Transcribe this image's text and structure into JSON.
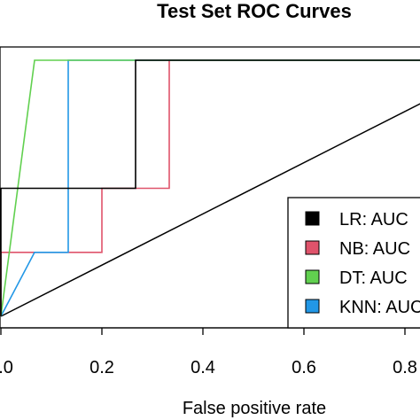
{
  "chart_data": {
    "type": "line",
    "title": "Test Set ROC Curves",
    "xlabel": "False positive rate",
    "ylabel": "",
    "xlim": [
      0,
      0.84
    ],
    "ylim": [
      0,
      1.04
    ],
    "x_ticks": [
      0.0,
      0.2,
      0.4,
      0.6,
      0.8
    ],
    "x_tick_labels": [
      "0.0",
      "0.2",
      "0.4",
      "0.6",
      "0.8"
    ],
    "grid": false,
    "legend_position": "bottom-right",
    "diagonal_reference": true,
    "series": [
      {
        "name": "LR: AUC",
        "color": "#000000",
        "points": [
          [
            0.0,
            0.0
          ],
          [
            0.0,
            0.5
          ],
          [
            0.2667,
            0.5
          ],
          [
            0.2667,
            1.0
          ],
          [
            1.0,
            1.0
          ]
        ]
      },
      {
        "name": "NB: AUC",
        "color": "#df536b",
        "points": [
          [
            0.0,
            0.0
          ],
          [
            0.0,
            0.25
          ],
          [
            0.2,
            0.25
          ],
          [
            0.2,
            0.5
          ],
          [
            0.3333,
            0.5
          ],
          [
            0.3333,
            1.0
          ],
          [
            1.0,
            1.0
          ]
        ]
      },
      {
        "name": "DT: AUC",
        "color": "#61d04f",
        "points": [
          [
            0.0,
            0.0
          ],
          [
            0.0667,
            1.0
          ],
          [
            1.0,
            1.0
          ]
        ]
      },
      {
        "name": "KNN: AUC",
        "color": "#2297e6",
        "points": [
          [
            0.0,
            0.0
          ],
          [
            0.0667,
            0.25
          ],
          [
            0.1333,
            0.25
          ],
          [
            0.1333,
            1.0
          ],
          [
            1.0,
            1.0
          ]
        ]
      }
    ]
  }
}
